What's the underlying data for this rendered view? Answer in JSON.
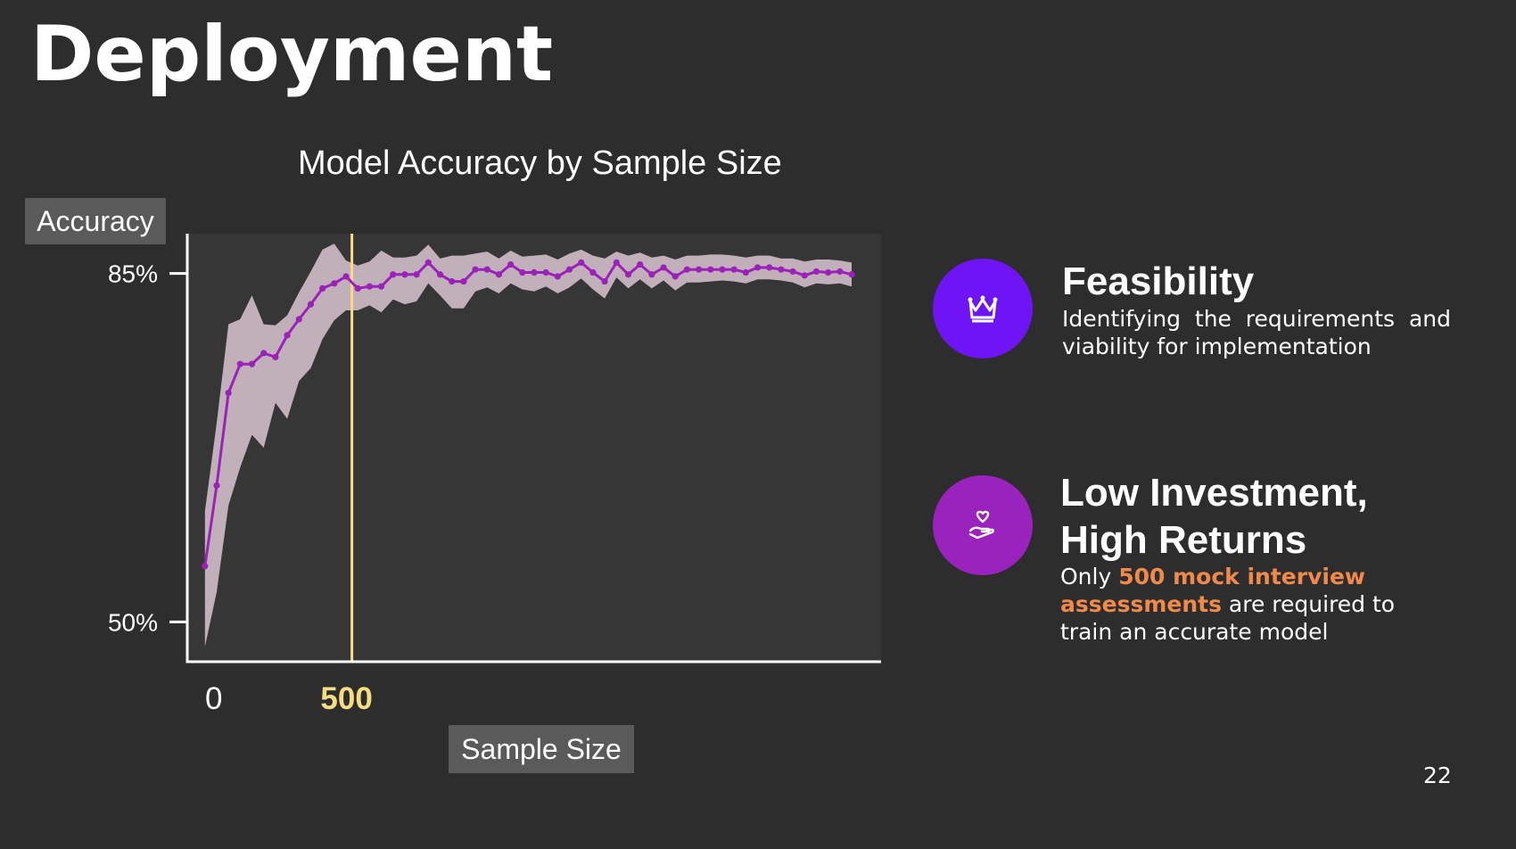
{
  "slide": {
    "title": "Deployment",
    "page_number": "22"
  },
  "colors": {
    "background": "#2d2d2d",
    "plot_background": "#363636",
    "accuracy_line": "#9b22b8",
    "confidence_band": "#d9c6d0",
    "threshold_line": "#f6dc82",
    "threshold_label": "#f6dc82",
    "feasibility_circle": "#6f14f5",
    "investment_circle": "#9a22bd",
    "highlight": "#f08a4b"
  },
  "features": [
    {
      "icon": "crown-icon",
      "title": "Feasibility",
      "description": "Identifying the requirements and viability for implementation"
    },
    {
      "icon": "heart-hand-icon",
      "title_line1": "Low Investment,",
      "title_line2": "High Returns",
      "desc_prefix": "Only ",
      "desc_highlight": "500 mock interview assessments",
      "desc_suffix": " are required to train an accurate model"
    }
  ],
  "chart_data": {
    "type": "line",
    "title": "Model Accuracy by Sample Size",
    "xlabel": "Sample Size",
    "ylabel": "Accuracy",
    "y_ticks": [
      {
        "value": 50,
        "label": "50%"
      },
      {
        "value": 85,
        "label": "85%"
      }
    ],
    "x_ticks": [
      {
        "value": 0,
        "label": "0"
      },
      {
        "value": 500,
        "label": "500"
      }
    ],
    "xlim": [
      -60,
      2300
    ],
    "ylim": [
      46,
      89
    ],
    "threshold": {
      "x": 500,
      "label": "500"
    },
    "series": [
      {
        "x": [
          0,
          40,
          80,
          120,
          160,
          200,
          240,
          280,
          320,
          360,
          400,
          440,
          480,
          520,
          560,
          600,
          640,
          680,
          720,
          760,
          800,
          840,
          880,
          920,
          960,
          1000,
          1040,
          1080,
          1120,
          1160,
          1200,
          1240,
          1280,
          1320,
          1360,
          1400,
          1440,
          1480,
          1520,
          1560,
          1600,
          1640,
          1680,
          1720,
          1760,
          1800,
          1840,
          1880,
          1920,
          1960,
          2000,
          2040,
          2080,
          2120,
          2160,
          2200
        ],
        "y": [
          55.6,
          63.7,
          73.0,
          75.9,
          75.9,
          77.0,
          76.6,
          78.8,
          80.4,
          81.9,
          83.5,
          84.0,
          84.7,
          83.5,
          83.7,
          83.7,
          84.9,
          84.9,
          84.9,
          86.1,
          84.9,
          84.2,
          84.2,
          85.4,
          85.4,
          84.9,
          85.9,
          85.1,
          85.1,
          85.1,
          84.7,
          85.4,
          86.1,
          85.1,
          84.2,
          86.1,
          84.9,
          85.9,
          84.9,
          85.6,
          84.7,
          85.4,
          85.4,
          85.4,
          85.4,
          85.4,
          85.1,
          85.6,
          85.6,
          85.4,
          85.2,
          84.8,
          85.2,
          85.1,
          85.2,
          84.9
        ],
        "upper": [
          61.1,
          70.0,
          79.9,
          80.4,
          82.8,
          79.9,
          79.8,
          80.8,
          83.1,
          85.2,
          87.4,
          88.0,
          86.3,
          85.8,
          86.2,
          87.3,
          86.6,
          86.6,
          86.8,
          87.9,
          86.5,
          86.8,
          86.8,
          87.0,
          87.2,
          86.5,
          87.3,
          86.7,
          86.8,
          86.9,
          86.4,
          87.0,
          87.4,
          86.8,
          86.5,
          87.2,
          86.8,
          87.1,
          86.6,
          86.8,
          86.4,
          86.8,
          86.8,
          86.9,
          86.9,
          86.8,
          86.6,
          86.8,
          86.8,
          86.5,
          86.5,
          86.2,
          86.4,
          86.4,
          86.3,
          86.1
        ],
        "lower": [
          47.5,
          53.0,
          61.7,
          65.5,
          68.8,
          67.5,
          72.0,
          70.4,
          74.2,
          75.5,
          78.4,
          80.3,
          81.3,
          81.3,
          81.8,
          81.1,
          82.4,
          81.9,
          82.2,
          84.0,
          82.8,
          81.5,
          81.5,
          83.2,
          83.6,
          83.0,
          84.0,
          83.4,
          83.2,
          83.7,
          83.0,
          83.6,
          84.5,
          83.4,
          82.5,
          84.6,
          83.5,
          84.4,
          83.5,
          84.3,
          83.3,
          84.1,
          84.1,
          84.2,
          84.3,
          84.2,
          84.0,
          84.4,
          84.4,
          84.3,
          84.1,
          83.6,
          84.0,
          83.9,
          84.0,
          83.7
        ]
      }
    ],
    "grid": false,
    "legend": "none"
  }
}
